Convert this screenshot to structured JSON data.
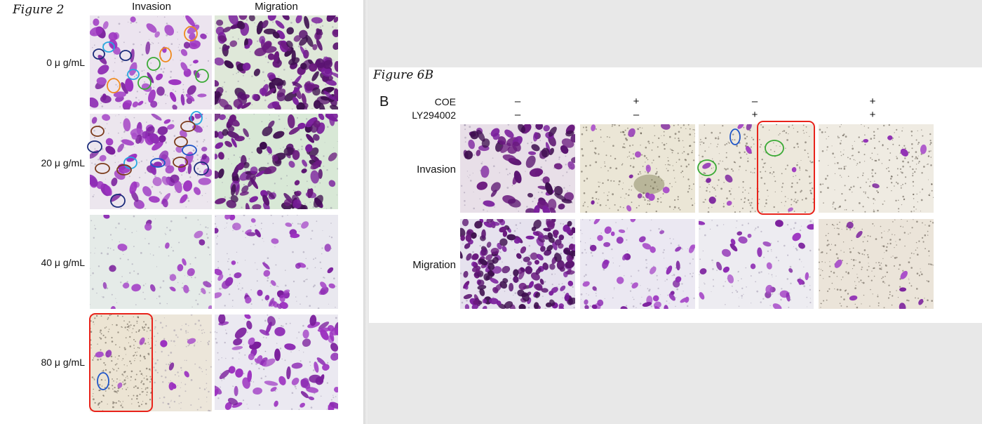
{
  "figure2": {
    "title": "Figure 2",
    "columns": [
      "Invasion",
      "Migration"
    ],
    "rows": [
      "0  μ g/mL",
      "20  μ g/mL",
      "40  μ g/mL",
      "80  μ g/mL"
    ]
  },
  "figure6b": {
    "title": "Figure 6B",
    "panel_letter": "B",
    "conditions": [
      {
        "name": "COE",
        "values": [
          "–",
          "+",
          "–",
          "+"
        ]
      },
      {
        "name": "LY294002",
        "values": [
          "–",
          "–",
          "+",
          "+"
        ]
      }
    ],
    "rows": [
      "Invasion",
      "Migration"
    ]
  },
  "colors": {
    "stain_purple": "#7a1e9c",
    "highlight_red": "#e8231b",
    "circle_orange": "#f08a1c",
    "circle_cyan": "#27a8e0",
    "circle_green": "#3aaa35",
    "circle_navy": "#1a2a7a",
    "circle_brown": "#7a3a1a",
    "circle_blue": "#1f55c8"
  }
}
